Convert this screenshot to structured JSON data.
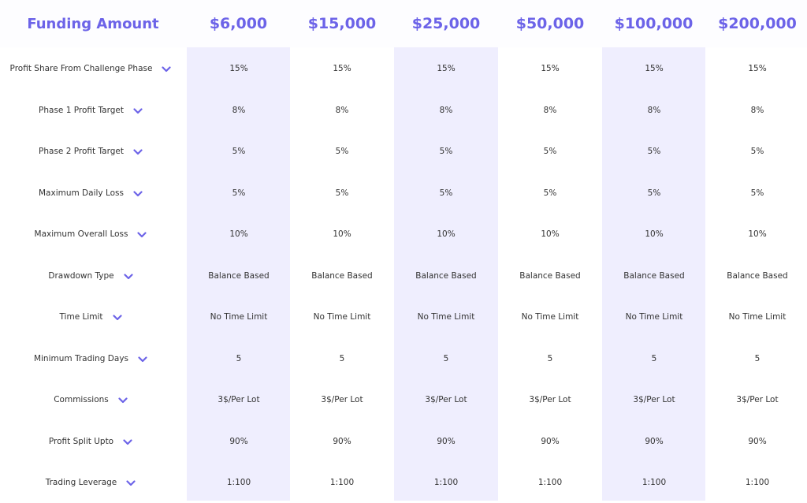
{
  "header": {
    "title": "Funding Amount",
    "plans": [
      "$6,000",
      "$15,000",
      "$25,000",
      "$50,000",
      "$100,000",
      "$200,000"
    ]
  },
  "colors": {
    "accent": "#6c63e8",
    "shaded_column": "#efeefe",
    "text": "#333333"
  },
  "rows": [
    {
      "label": "Profit Share From Challenge Phase",
      "icon": "chevron-down-icon",
      "values": [
        "15%",
        "15%",
        "15%",
        "15%",
        "15%",
        "15%"
      ]
    },
    {
      "label": "Phase 1 Profit Target",
      "icon": "chevron-down-icon",
      "values": [
        "8%",
        "8%",
        "8%",
        "8%",
        "8%",
        "8%"
      ]
    },
    {
      "label": "Phase 2 Profit Target",
      "icon": "chevron-down-icon",
      "values": [
        "5%",
        "5%",
        "5%",
        "5%",
        "5%",
        "5%"
      ]
    },
    {
      "label": "Maximum Daily Loss",
      "icon": "chevron-down-icon",
      "values": [
        "5%",
        "5%",
        "5%",
        "5%",
        "5%",
        "5%"
      ]
    },
    {
      "label": "Maximum Overall Loss",
      "icon": "chevron-down-icon",
      "values": [
        "10%",
        "10%",
        "10%",
        "10%",
        "10%",
        "10%"
      ]
    },
    {
      "label": "Drawdown Type",
      "icon": "chevron-down-icon",
      "values": [
        "Balance Based",
        "Balance Based",
        "Balance Based",
        "Balance Based",
        "Balance Based",
        "Balance Based"
      ]
    },
    {
      "label": "Time Limit",
      "icon": "chevron-down-icon",
      "values": [
        "No Time Limit",
        "No Time Limit",
        "No Time Limit",
        "No Time Limit",
        "No Time Limit",
        "No Time Limit"
      ]
    },
    {
      "label": "Minimum Trading Days",
      "icon": "chevron-down-icon",
      "values": [
        "5",
        "5",
        "5",
        "5",
        "5",
        "5"
      ]
    },
    {
      "label": "Commissions",
      "icon": "chevron-down-icon",
      "values": [
        "3$/Per Lot",
        "3$/Per Lot",
        "3$/Per Lot",
        "3$/Per Lot",
        "3$/Per Lot",
        "3$/Per Lot"
      ]
    },
    {
      "label": "Profit Split Upto",
      "icon": "chevron-down-icon",
      "values": [
        "90%",
        "90%",
        "90%",
        "90%",
        "90%",
        "90%"
      ]
    },
    {
      "label": "Trading Leverage",
      "icon": "chevron-down-icon",
      "values": [
        "1:100",
        "1:100",
        "1:100",
        "1:100",
        "1:100",
        "1:100"
      ]
    }
  ]
}
